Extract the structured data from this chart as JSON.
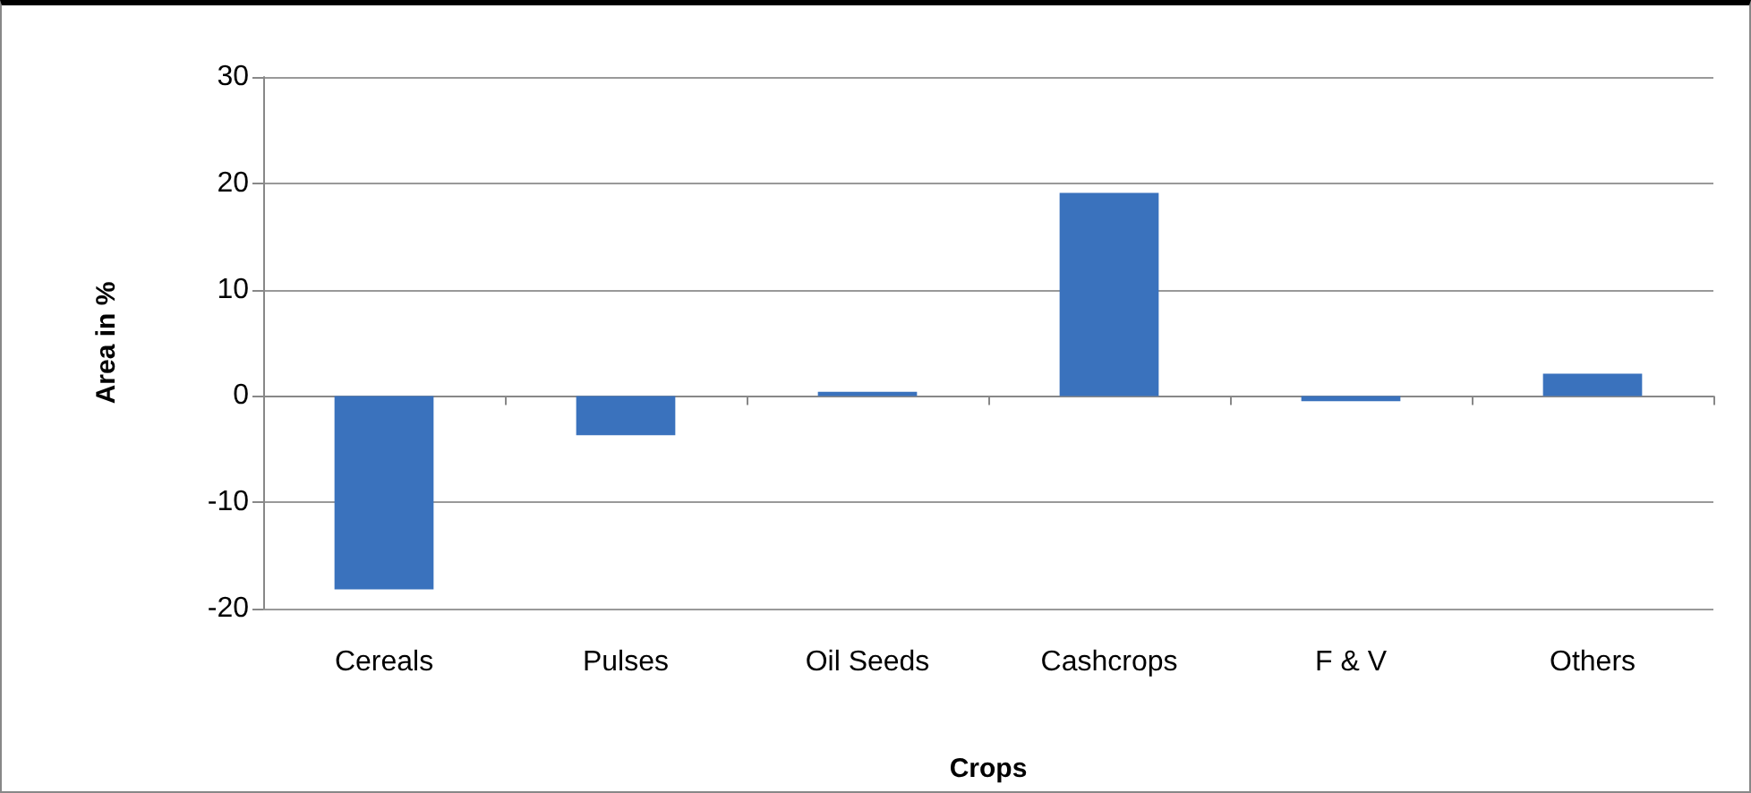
{
  "chart_data": {
    "type": "bar",
    "xlabel": "Crops",
    "ylabel": "Area in %",
    "categories": [
      "Cereals",
      "Pulses",
      "Oil Seeds",
      "Cashcrops",
      "F & V",
      "Others"
    ],
    "values": [
      -18.2,
      -3.7,
      0.4,
      19.1,
      -0.5,
      2.1
    ],
    "color": "#3a72bd",
    "ylim": [
      -20,
      30
    ],
    "yticks": [
      -20,
      -10,
      0,
      10,
      20,
      30
    ],
    "grid": "y"
  }
}
